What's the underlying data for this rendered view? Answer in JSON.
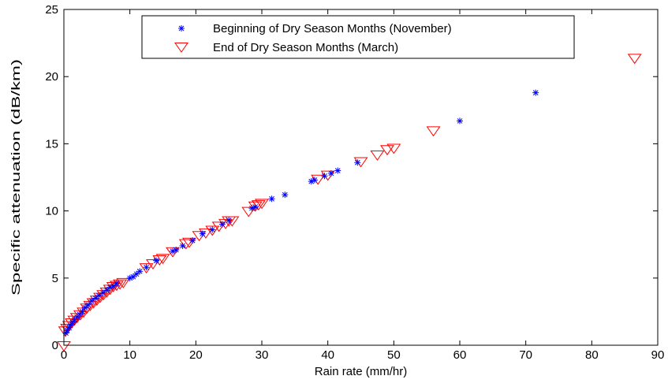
{
  "chart_data": {
    "type": "scatter",
    "title": "",
    "xlabel": "Rain rate (mm/hr)",
    "ylabel": "Specific attenuation (dB/km)",
    "xlim": [
      0,
      90
    ],
    "ylim": [
      0,
      25
    ],
    "xticks": [
      0,
      10,
      20,
      30,
      40,
      50,
      60,
      70,
      80,
      90
    ],
    "yticks": [
      0,
      5,
      10,
      15,
      20,
      25
    ],
    "grid": false,
    "legend_position": "top-center",
    "series": [
      {
        "name": "Beginning of Dry Season Months (November)",
        "marker": "asterisk",
        "color": "#0000ff",
        "points": [
          [
            0.3,
            0.9
          ],
          [
            0.5,
            1.1
          ],
          [
            0.8,
            1.3
          ],
          [
            1.0,
            1.5
          ],
          [
            1.3,
            1.7
          ],
          [
            1.6,
            1.9
          ],
          [
            2.0,
            2.1
          ],
          [
            2.4,
            2.3
          ],
          [
            2.8,
            2.5
          ],
          [
            3.2,
            2.8
          ],
          [
            3.7,
            3.0
          ],
          [
            4.2,
            3.3
          ],
          [
            4.8,
            3.5
          ],
          [
            5.3,
            3.7
          ],
          [
            5.9,
            3.9
          ],
          [
            6.5,
            4.1
          ],
          [
            7.0,
            4.3
          ],
          [
            7.5,
            4.4
          ],
          [
            8.0,
            4.6
          ],
          [
            10.0,
            5.0
          ],
          [
            10.5,
            5.1
          ],
          [
            11.0,
            5.3
          ],
          [
            11.5,
            5.5
          ],
          [
            12.5,
            5.8
          ],
          [
            14.0,
            6.3
          ],
          [
            16.5,
            7.0
          ],
          [
            17.0,
            7.1
          ],
          [
            18.0,
            7.4
          ],
          [
            19.5,
            7.8
          ],
          [
            21.0,
            8.3
          ],
          [
            22.5,
            8.6
          ],
          [
            24.0,
            9.0
          ],
          [
            25.0,
            9.3
          ],
          [
            28.5,
            10.2
          ],
          [
            29.0,
            10.3
          ],
          [
            31.5,
            10.9
          ],
          [
            33.5,
            11.2
          ],
          [
            37.5,
            12.2
          ],
          [
            38.0,
            12.3
          ],
          [
            39.5,
            12.6
          ],
          [
            40.5,
            12.8
          ],
          [
            41.5,
            13.0
          ],
          [
            44.5,
            13.6
          ],
          [
            60.0,
            16.7
          ],
          [
            71.5,
            18.8
          ]
        ]
      },
      {
        "name": "End of Dry Season Months (March)",
        "marker": "triangle-down",
        "color": "#ff0000",
        "points": [
          [
            0.0,
            0.0
          ],
          [
            0.2,
            1.1
          ],
          [
            0.5,
            1.3
          ],
          [
            0.8,
            1.5
          ],
          [
            1.2,
            1.7
          ],
          [
            1.6,
            1.9
          ],
          [
            2.0,
            2.1
          ],
          [
            2.5,
            2.3
          ],
          [
            3.0,
            2.5
          ],
          [
            3.5,
            2.8
          ],
          [
            4.0,
            3.0
          ],
          [
            4.5,
            3.2
          ],
          [
            5.0,
            3.4
          ],
          [
            5.5,
            3.6
          ],
          [
            6.0,
            3.8
          ],
          [
            6.5,
            4.0
          ],
          [
            7.0,
            4.2
          ],
          [
            7.5,
            4.4
          ],
          [
            8.0,
            4.5
          ],
          [
            8.5,
            4.6
          ],
          [
            9.0,
            4.7
          ],
          [
            12.5,
            5.8
          ],
          [
            13.5,
            6.1
          ],
          [
            14.5,
            6.4
          ],
          [
            15.0,
            6.5
          ],
          [
            16.5,
            7.0
          ],
          [
            18.5,
            7.6
          ],
          [
            19.0,
            7.7
          ],
          [
            20.5,
            8.2
          ],
          [
            21.5,
            8.4
          ],
          [
            22.5,
            8.6
          ],
          [
            23.5,
            8.9
          ],
          [
            24.5,
            9.1
          ],
          [
            25.0,
            9.3
          ],
          [
            25.5,
            9.3
          ],
          [
            28.0,
            10.0
          ],
          [
            29.0,
            10.4
          ],
          [
            29.5,
            10.5
          ],
          [
            30.0,
            10.6
          ],
          [
            38.5,
            12.4
          ],
          [
            40.0,
            12.7
          ],
          [
            45.0,
            13.7
          ],
          [
            47.5,
            14.2
          ],
          [
            49.0,
            14.6
          ],
          [
            50.0,
            14.7
          ],
          [
            56.0,
            16.0
          ],
          [
            86.5,
            21.4
          ]
        ]
      }
    ]
  }
}
